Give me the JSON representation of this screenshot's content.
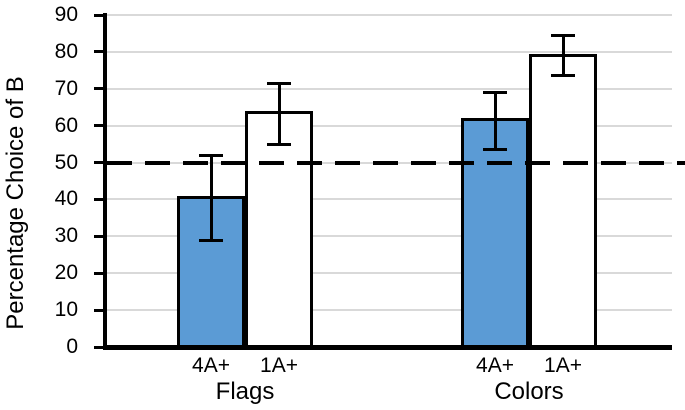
{
  "chart_data": {
    "type": "bar",
    "title": "",
    "ylabel": "Percentage Choice of B",
    "xlabel": "",
    "ylim": [
      0,
      90
    ],
    "ytick_step": 10,
    "ytick_labels": [
      "0",
      "10",
      "20",
      "30",
      "40",
      "50",
      "60",
      "70",
      "80",
      "90"
    ],
    "grid": "horizontal",
    "legend": "none",
    "reference_line": {
      "value": 50,
      "style": "dashed",
      "color": "#000000"
    },
    "groups": [
      {
        "label": "Flags",
        "bars": [
          {
            "label": "4A+",
            "value": 40.5,
            "error_low": 29,
            "error_high": 52,
            "fill": "#5B9BD5"
          },
          {
            "label": "1A+",
            "value": 63.5,
            "error_low": 55,
            "error_high": 71.5,
            "fill": "#FFFFFF"
          }
        ]
      },
      {
        "label": "Colors",
        "bars": [
          {
            "label": "4A+",
            "value": 61.5,
            "error_low": 53.5,
            "error_high": 69,
            "fill": "#5B9BD5"
          },
          {
            "label": "1A+",
            "value": 79,
            "error_low": 73.5,
            "error_high": 84.5,
            "fill": "#FFFFFF"
          }
        ]
      }
    ],
    "colors": {
      "bar_fill_blue": "#5B9BD5",
      "bar_fill_white": "#FFFFFF",
      "bar_border": "#000000",
      "gridline": "#D9D9D9",
      "axis": "#000000",
      "text": "#000000",
      "background": "#FFFFFF"
    }
  }
}
